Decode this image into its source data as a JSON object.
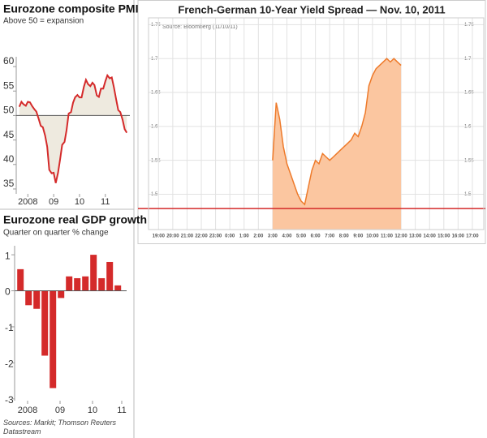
{
  "chart_data": [
    {
      "type": "line",
      "title": "Eurozone composite PMI",
      "subtitle": "Above 50 = expansion",
      "x": [
        2007.67,
        2007.75,
        2007.83,
        2007.92,
        2008.0,
        2008.08,
        2008.17,
        2008.25,
        2008.33,
        2008.42,
        2008.5,
        2008.58,
        2008.67,
        2008.75,
        2008.83,
        2008.92,
        2009.0,
        2009.08,
        2009.17,
        2009.25,
        2009.33,
        2009.42,
        2009.5,
        2009.58,
        2009.67,
        2009.75,
        2009.83,
        2009.92,
        2010.0,
        2010.08,
        2010.17,
        2010.25,
        2010.33,
        2010.42,
        2010.5,
        2010.58,
        2010.67,
        2010.75,
        2010.83,
        2010.92,
        2011.0,
        2011.08,
        2011.17,
        2011.25,
        2011.33,
        2011.42,
        2011.5,
        2011.58,
        2011.67,
        2011.75,
        2011.83
      ],
      "values": [
        51.8,
        52.8,
        52.3,
        52.0,
        52.8,
        52.7,
        51.9,
        51.3,
        50.8,
        49.3,
        47.9,
        47.6,
        45.9,
        43.6,
        38.9,
        38.2,
        38.3,
        36.2,
        38.3,
        41.1,
        44.0,
        44.6,
        47.0,
        50.4,
        50.7,
        52.6,
        53.7,
        54.2,
        53.7,
        53.7,
        55.9,
        57.3,
        56.4,
        56.0,
        56.7,
        56.2,
        54.1,
        53.8,
        55.5,
        55.5,
        57.0,
        58.2,
        57.6,
        57.8,
        55.8,
        53.3,
        51.1,
        50.7,
        49.1,
        47.2,
        46.5
      ],
      "color": "#d42a2a",
      "fill_color": "#eeeadf",
      "baseline": 50,
      "xlim": [
        2007.55,
        2011.95
      ],
      "xticks": [
        2008,
        {
          "value": 2009,
          "label": "09"
        },
        {
          "value": 2010,
          "label": "10"
        },
        {
          "value": 2011,
          "label": "11"
        }
      ],
      "ylim": [
        34,
        62
      ],
      "yticks": [
        35,
        40,
        45,
        50,
        55,
        60
      ]
    },
    {
      "type": "bar",
      "title": "Eurozone real GDP growth",
      "subtitle": "Quarter on quarter % change",
      "x": [
        2007.88,
        2008.13,
        2008.38,
        2008.63,
        2008.88,
        2009.13,
        2009.38,
        2009.63,
        2009.88,
        2010.13,
        2010.38,
        2010.63,
        2010.88
      ],
      "values": [
        0.6,
        -0.4,
        -0.5,
        -1.8,
        -2.7,
        -0.2,
        0.4,
        0.35,
        0.4,
        1.0,
        0.35,
        0.8,
        0.15
      ],
      "color": "#d42a2a",
      "xlim": [
        2007.7,
        2011.15
      ],
      "xticks": [
        {
          "value": 2008.1,
          "label": "2008"
        },
        {
          "value": 2009.1,
          "label": "09"
        },
        {
          "value": 2010.1,
          "label": "10"
        },
        {
          "value": 2011.0,
          "label": "11"
        }
      ],
      "ylim": [
        -3.05,
        1.25
      ],
      "yticks": [
        1,
        0,
        -1,
        -2,
        -3
      ],
      "source": "Sources: Markit; Thomson Reuters Datastream"
    },
    {
      "type": "area",
      "title": "French-German 10-Year Yield Spread — Nov. 10, 2011",
      "source": "Source: Bloomberg (11/10/11)",
      "x": [
        8.0,
        8.25,
        8.5,
        8.75,
        9.0,
        9.25,
        9.5,
        9.75,
        10.0,
        10.25,
        10.5,
        10.75,
        11.0,
        11.25,
        11.5,
        11.75,
        12.0,
        12.25,
        12.5,
        12.75,
        13.0,
        13.25,
        13.5,
        13.75,
        14.0,
        14.25,
        14.5,
        14.75,
        15.0,
        15.25,
        15.5,
        15.75,
        16.0,
        16.25,
        16.5,
        16.75,
        17.0
      ],
      "values": [
        1.55,
        1.635,
        1.61,
        1.57,
        1.545,
        1.53,
        1.515,
        1.5,
        1.49,
        1.485,
        1.51,
        1.535,
        1.55,
        1.545,
        1.56,
        1.555,
        1.55,
        1.555,
        1.56,
        1.565,
        1.57,
        1.575,
        1.58,
        1.59,
        1.585,
        1.6,
        1.62,
        1.66,
        1.675,
        1.685,
        1.69,
        1.695,
        1.7,
        1.695,
        1.7,
        1.695,
        1.69
      ],
      "color": "#ee7a2a",
      "fill_color": "#fbc6a0",
      "reference_line": 1.479,
      "reference_color": "#d42a2a",
      "xlim": [
        -0.7,
        22.8
      ],
      "xticks": [
        {
          "value": 0,
          "label": "19:00"
        },
        {
          "value": 1,
          "label": "20:00"
        },
        {
          "value": 2,
          "label": "21:00"
        },
        {
          "value": 3,
          "label": "22:00"
        },
        {
          "value": 4,
          "label": "23:00"
        },
        {
          "value": 5,
          "label": "0:00"
        },
        {
          "value": 6,
          "label": "1:00"
        },
        {
          "value": 7,
          "label": "2:00"
        },
        {
          "value": 8,
          "label": "3:00"
        },
        {
          "value": 9,
          "label": "4:00"
        },
        {
          "value": 10,
          "label": "5:00"
        },
        {
          "value": 11,
          "label": "6:00"
        },
        {
          "value": 12,
          "label": "7:00"
        },
        {
          "value": 13,
          "label": "8:00"
        },
        {
          "value": 14,
          "label": "9:00"
        },
        {
          "value": 15,
          "label": "10:00"
        },
        {
          "value": 16,
          "label": "11:00"
        },
        {
          "value": 17,
          "label": "12:00"
        },
        {
          "value": 18,
          "label": "13:00"
        },
        {
          "value": 19,
          "label": "14:00"
        },
        {
          "value": 20,
          "label": "15:00"
        },
        {
          "value": 21,
          "label": "16:00"
        },
        {
          "value": 22,
          "label": "17:00"
        }
      ],
      "ylim": [
        1.448,
        1.76
      ],
      "yticks": [
        1.5,
        1.55,
        1.6,
        1.65,
        1.7,
        1.75
      ],
      "grid": true,
      "mirror_yticks": true
    }
  ]
}
